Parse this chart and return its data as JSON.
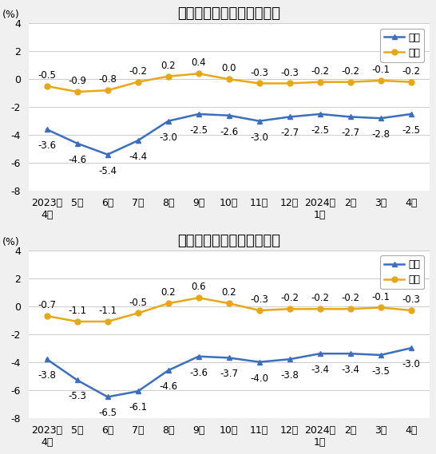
{
  "chart1_title": "工业生产者出厂价格涨跌幅",
  "chart2_title": "工业生产者购进价格涨跌幅",
  "x_labels": [
    "2023年\n4月",
    "5月",
    "6月",
    "7月",
    "8月",
    "9月",
    "10月",
    "11月",
    "12月",
    "2024年\n1月",
    "2月",
    "3月",
    "4月"
  ],
  "chart1_tongbi": [
    -3.6,
    -4.6,
    -5.4,
    -4.4,
    -3.0,
    -2.5,
    -2.6,
    -3.0,
    -2.7,
    -2.5,
    -2.7,
    -2.8,
    -2.5
  ],
  "chart1_huanbi": [
    -0.5,
    -0.9,
    -0.8,
    -0.2,
    0.2,
    0.4,
    0.0,
    -0.3,
    -0.3,
    -0.2,
    -0.2,
    -0.1,
    -0.2
  ],
  "chart2_tongbi": [
    -3.8,
    -5.3,
    -6.5,
    -6.1,
    -4.6,
    -3.6,
    -3.7,
    -4.0,
    -3.8,
    -3.4,
    -3.4,
    -3.5,
    -3.0
  ],
  "chart2_huanbi": [
    -0.7,
    -1.1,
    -1.1,
    -0.5,
    0.2,
    0.6,
    0.2,
    -0.3,
    -0.2,
    -0.2,
    -0.2,
    -0.1,
    -0.3
  ],
  "tongbi_color": "#3b6fbe",
  "huanbi_color": "#e6a817",
  "tongbi_label": "同比",
  "huanbi_label": "环比",
  "ylabel": "(%)",
  "ylim": [
    -8.0,
    4.0
  ],
  "yticks": [
    -8.0,
    -6.0,
    -4.0,
    -2.0,
    0.0,
    2.0,
    4.0
  ],
  "bg_color": "#f0f0f0",
  "plot_bg_color": "#ffffff",
  "grid_color": "#cccccc",
  "fontsize_title": 13,
  "fontsize_label": 9,
  "fontsize_annotation": 8.5,
  "fontsize_ylabel": 9
}
